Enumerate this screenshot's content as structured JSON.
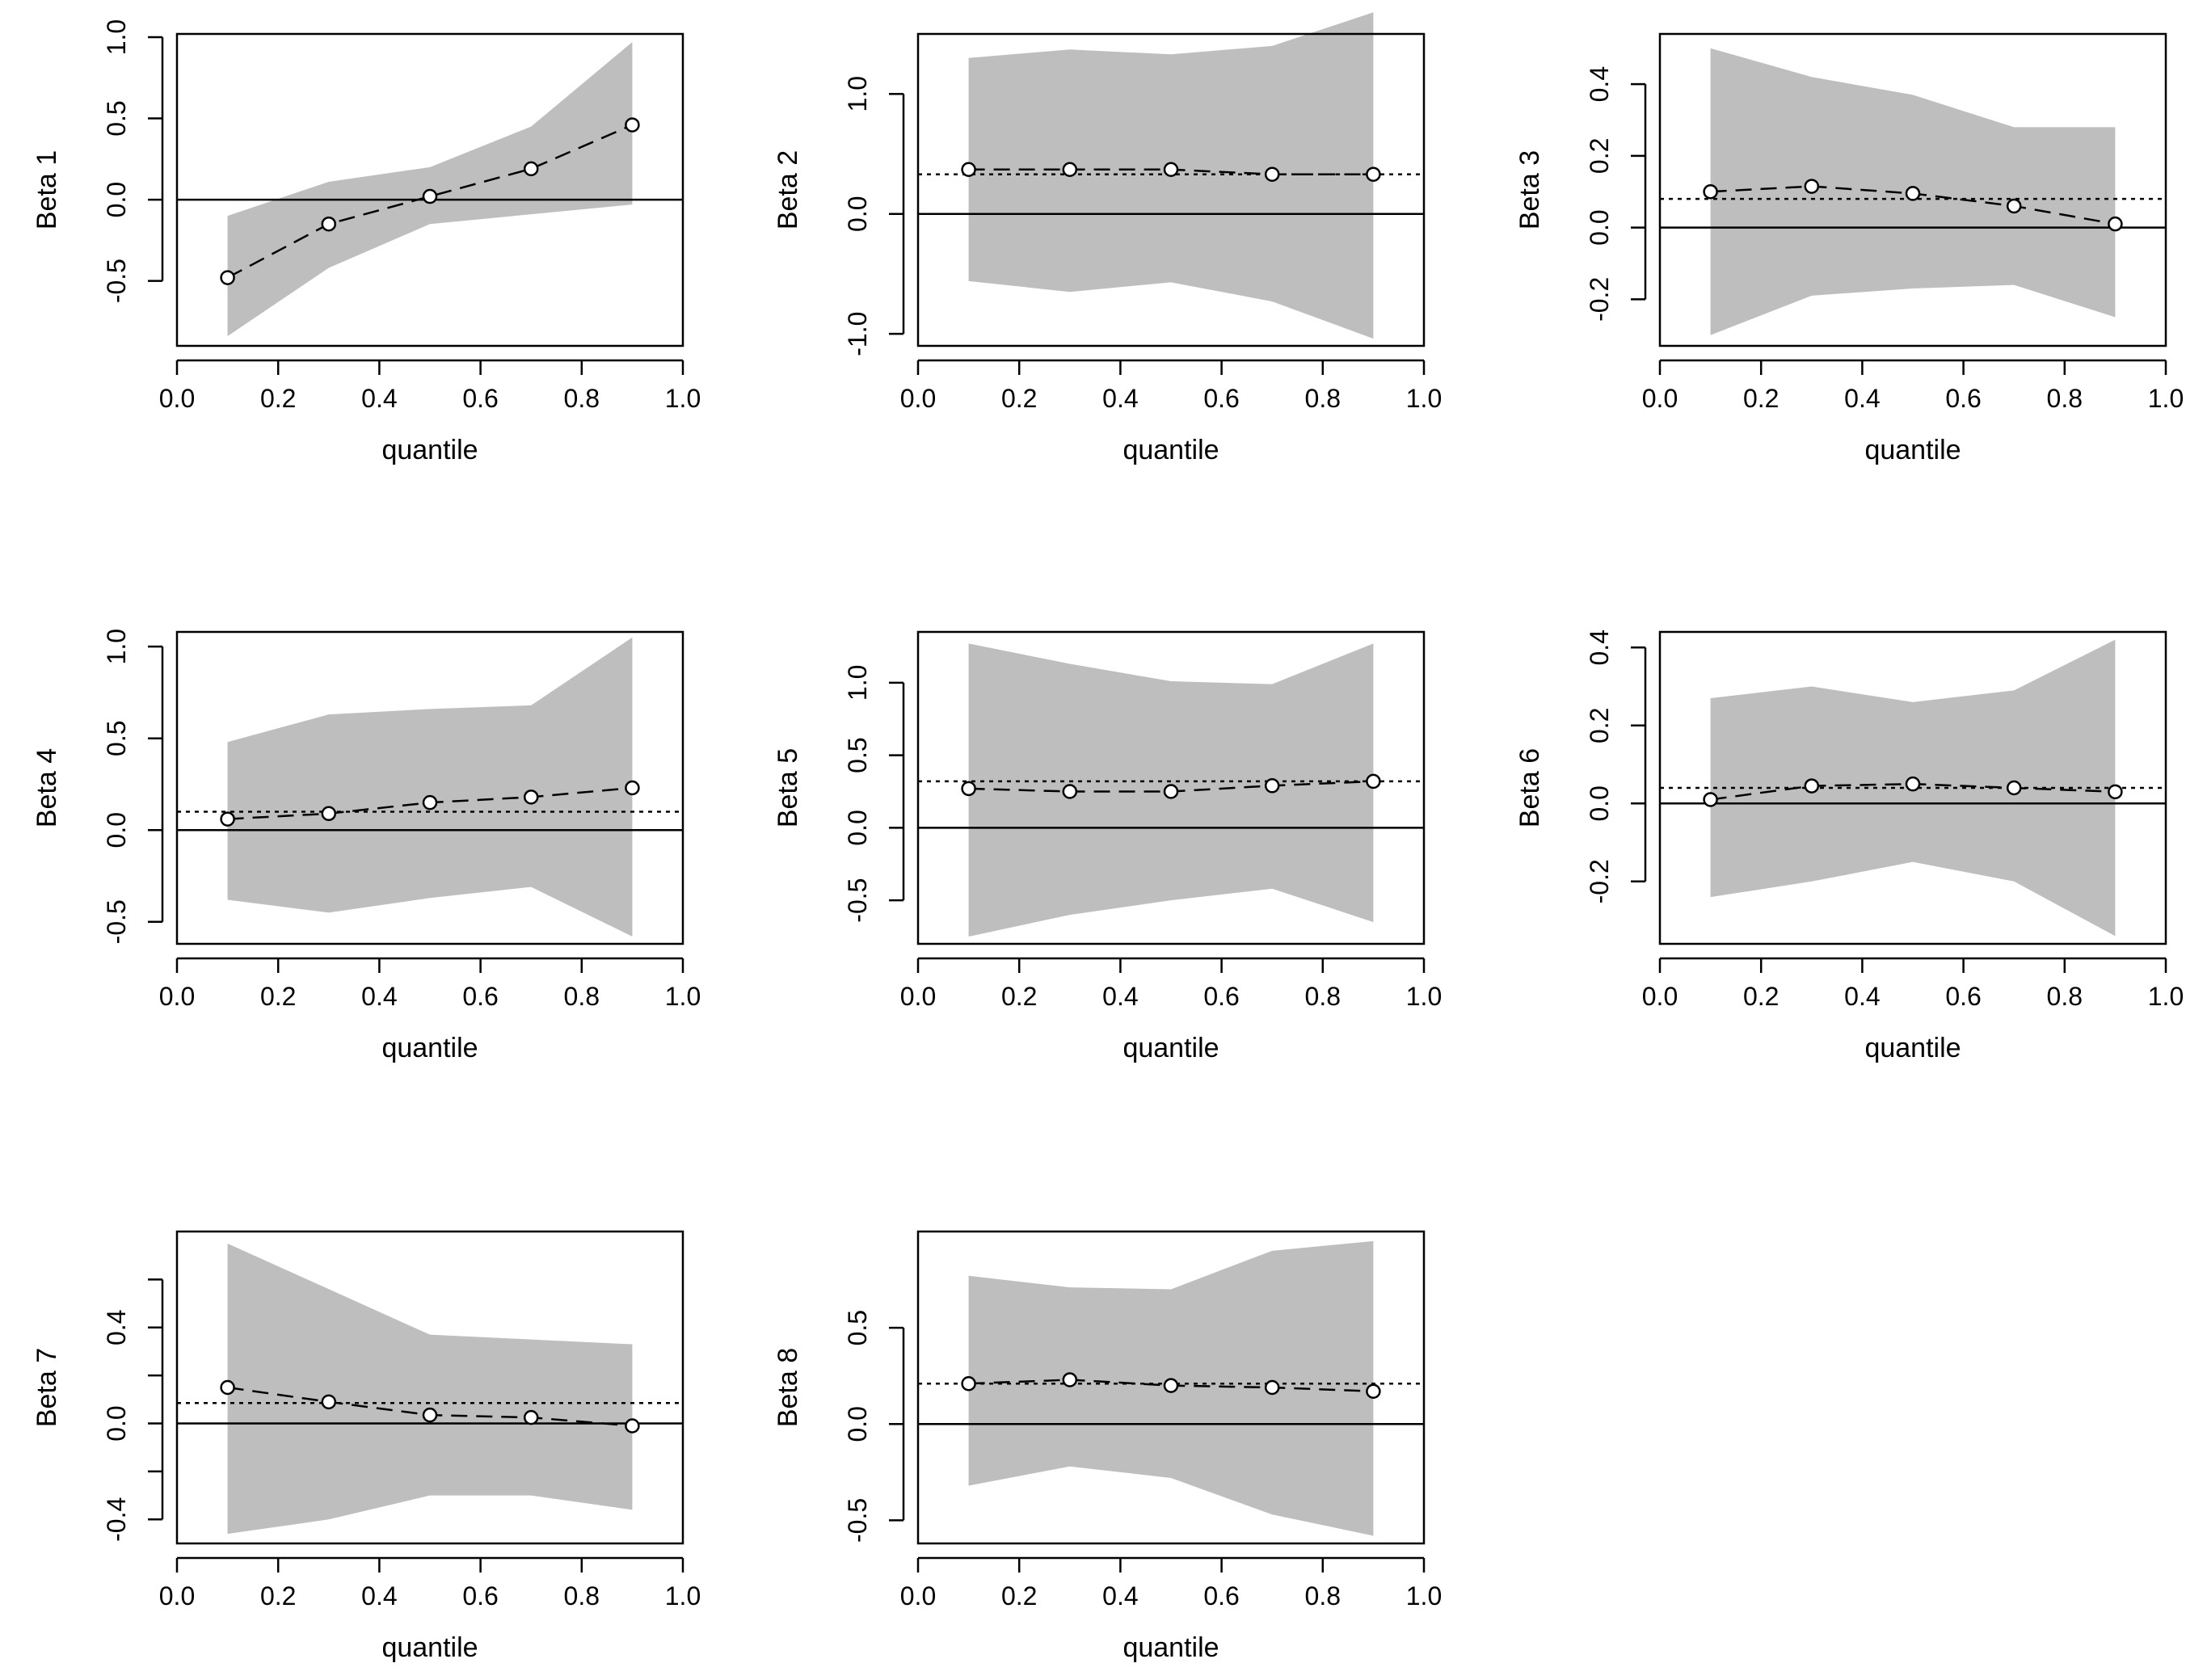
{
  "figure": {
    "background": "#ffffff",
    "band_color": "#bebebe",
    "line_color": "#000000"
  },
  "chart_data": [
    {
      "type": "line",
      "ylabel": "Beta 1",
      "xlabel": "quantile",
      "x": [
        0.1,
        0.3,
        0.5,
        0.7,
        0.9
      ],
      "estimate": [
        -0.48,
        -0.15,
        0.02,
        0.19,
        0.46
      ],
      "band_upper": [
        -0.1,
        0.11,
        0.2,
        0.45,
        0.97
      ],
      "band_lower": [
        -0.84,
        -0.42,
        -0.15,
        -0.09,
        -0.03
      ],
      "mean_line": null,
      "xlim": [
        0.0,
        1.0
      ],
      "ylim": [
        -0.9,
        1.02
      ],
      "xticks": [
        0.0,
        0.2,
        0.4,
        0.6,
        0.8,
        1.0
      ],
      "xtick_labels": [
        "0.0",
        "0.2",
        "0.4",
        "0.6",
        "0.8",
        "1.0"
      ],
      "yticks": [
        -0.5,
        0.0,
        0.5,
        1.0
      ],
      "ytick_labels": [
        "-0.5",
        "0.0",
        "0.5",
        "1.0"
      ]
    },
    {
      "type": "line",
      "ylabel": "Beta 2",
      "xlabel": "quantile",
      "x": [
        0.1,
        0.3,
        0.5,
        0.7,
        0.9
      ],
      "estimate": [
        0.37,
        0.37,
        0.37,
        0.33,
        0.33
      ],
      "band_upper": [
        1.3,
        1.37,
        1.33,
        1.4,
        1.68
      ],
      "band_lower": [
        -0.56,
        -0.65,
        -0.57,
        -0.73,
        -1.04
      ],
      "mean_line": 0.33,
      "xlim": [
        0.0,
        1.0
      ],
      "ylim": [
        -1.1,
        1.5
      ],
      "xticks": [
        0.0,
        0.2,
        0.4,
        0.6,
        0.8,
        1.0
      ],
      "xtick_labels": [
        "0.0",
        "0.2",
        "0.4",
        "0.6",
        "0.8",
        "1.0"
      ],
      "yticks": [
        -1.0,
        0.0,
        1.0
      ],
      "ytick_labels": [
        "-1.0",
        "0.0",
        "1.0"
      ]
    },
    {
      "type": "line",
      "ylabel": "Beta 3",
      "xlabel": "quantile",
      "x": [
        0.1,
        0.3,
        0.5,
        0.7,
        0.9
      ],
      "estimate": [
        0.1,
        0.115,
        0.095,
        0.06,
        0.01
      ],
      "band_upper": [
        0.5,
        0.42,
        0.37,
        0.28,
        0.28
      ],
      "band_lower": [
        -0.3,
        -0.19,
        -0.17,
        -0.16,
        -0.25
      ],
      "mean_line": 0.08,
      "xlim": [
        0.0,
        1.0
      ],
      "ylim": [
        -0.33,
        0.54
      ],
      "xticks": [
        0.0,
        0.2,
        0.4,
        0.6,
        0.8,
        1.0
      ],
      "xtick_labels": [
        "0.0",
        "0.2",
        "0.4",
        "0.6",
        "0.8",
        "1.0"
      ],
      "yticks": [
        -0.2,
        0.0,
        0.2,
        0.4
      ],
      "ytick_labels": [
        "-0.2",
        "0.0",
        "0.2",
        "0.4"
      ]
    },
    {
      "type": "line",
      "ylabel": "Beta 4",
      "xlabel": "quantile",
      "x": [
        0.1,
        0.3,
        0.5,
        0.7,
        0.9
      ],
      "estimate": [
        0.06,
        0.09,
        0.15,
        0.18,
        0.23
      ],
      "band_upper": [
        0.48,
        0.63,
        0.66,
        0.68,
        1.05
      ],
      "band_lower": [
        -0.38,
        -0.45,
        -0.37,
        -0.31,
        -0.58
      ],
      "mean_line": 0.1,
      "xlim": [
        0.0,
        1.0
      ],
      "ylim": [
        -0.62,
        1.08
      ],
      "xticks": [
        0.0,
        0.2,
        0.4,
        0.6,
        0.8,
        1.0
      ],
      "xtick_labels": [
        "0.0",
        "0.2",
        "0.4",
        "0.6",
        "0.8",
        "1.0"
      ],
      "yticks": [
        -0.5,
        0.0,
        0.5,
        1.0
      ],
      "ytick_labels": [
        "-0.5",
        "0.0",
        "0.5",
        "1.0"
      ]
    },
    {
      "type": "line",
      "ylabel": "Beta 5",
      "xlabel": "quantile",
      "x": [
        0.1,
        0.3,
        0.5,
        0.7,
        0.9
      ],
      "estimate": [
        0.27,
        0.25,
        0.25,
        0.29,
        0.32
      ],
      "band_upper": [
        1.27,
        1.13,
        1.01,
        0.99,
        1.27
      ],
      "band_lower": [
        -0.75,
        -0.6,
        -0.5,
        -0.42,
        -0.65
      ],
      "mean_line": 0.32,
      "xlim": [
        0.0,
        1.0
      ],
      "ylim": [
        -0.8,
        1.35
      ],
      "xticks": [
        0.0,
        0.2,
        0.4,
        0.6,
        0.8,
        1.0
      ],
      "xtick_labels": [
        "0.0",
        "0.2",
        "0.4",
        "0.6",
        "0.8",
        "1.0"
      ],
      "yticks": [
        -0.5,
        0.0,
        0.5,
        1.0
      ],
      "ytick_labels": [
        "-0.5",
        "0.0",
        "0.5",
        "1.0"
      ]
    },
    {
      "type": "line",
      "ylabel": "Beta 6",
      "xlabel": "quantile",
      "x": [
        0.1,
        0.3,
        0.5,
        0.7,
        0.9
      ],
      "estimate": [
        0.01,
        0.045,
        0.05,
        0.04,
        0.03
      ],
      "band_upper": [
        0.27,
        0.3,
        0.26,
        0.29,
        0.42
      ],
      "band_lower": [
        -0.24,
        -0.2,
        -0.15,
        -0.2,
        -0.34
      ],
      "mean_line": 0.04,
      "xlim": [
        0.0,
        1.0
      ],
      "ylim": [
        -0.36,
        0.44
      ],
      "xticks": [
        0.0,
        0.2,
        0.4,
        0.6,
        0.8,
        1.0
      ],
      "xtick_labels": [
        "0.0",
        "0.2",
        "0.4",
        "0.6",
        "0.8",
        "1.0"
      ],
      "yticks": [
        -0.2,
        0.0,
        0.2,
        0.4
      ],
      "ytick_labels": [
        "-0.2",
        "0.0",
        "0.2",
        "0.4"
      ]
    },
    {
      "type": "line",
      "ylabel": "Beta 7",
      "xlabel": "quantile",
      "x": [
        0.1,
        0.3,
        0.5,
        0.7,
        0.9
      ],
      "estimate": [
        0.15,
        0.09,
        0.035,
        0.025,
        -0.01
      ],
      "band_upper": [
        0.75,
        0.56,
        0.37,
        0.35,
        0.33
      ],
      "band_lower": [
        -0.46,
        -0.4,
        -0.3,
        -0.3,
        -0.36
      ],
      "mean_line": 0.085,
      "xlim": [
        0.0,
        1.0
      ],
      "ylim": [
        -0.5,
        0.8
      ],
      "xticks": [
        0.0,
        0.2,
        0.4,
        0.6,
        0.8,
        1.0
      ],
      "xtick_labels": [
        "0.0",
        "0.2",
        "0.4",
        "0.6",
        "0.8",
        "1.0"
      ],
      "yticks": [
        -0.4,
        -0.2,
        0.0,
        0.2,
        0.4,
        0.6
      ],
      "ytick_labels": [
        "-0.4",
        "",
        "0.0",
        "",
        "0.4",
        ""
      ]
    },
    {
      "type": "line",
      "ylabel": "Beta 8",
      "xlabel": "quantile",
      "x": [
        0.1,
        0.3,
        0.5,
        0.7,
        0.9
      ],
      "estimate": [
        0.21,
        0.23,
        0.2,
        0.19,
        0.17
      ],
      "band_upper": [
        0.77,
        0.71,
        0.7,
        0.9,
        0.95
      ],
      "band_lower": [
        -0.32,
        -0.22,
        -0.28,
        -0.47,
        -0.58
      ],
      "mean_line": 0.21,
      "xlim": [
        0.0,
        1.0
      ],
      "ylim": [
        -0.62,
        1.0
      ],
      "xticks": [
        0.0,
        0.2,
        0.4,
        0.6,
        0.8,
        1.0
      ],
      "xtick_labels": [
        "0.0",
        "0.2",
        "0.4",
        "0.6",
        "0.8",
        "1.0"
      ],
      "yticks": [
        -0.5,
        0.0,
        0.5
      ],
      "ytick_labels": [
        "-0.5",
        "0.0",
        "0.5"
      ]
    }
  ]
}
